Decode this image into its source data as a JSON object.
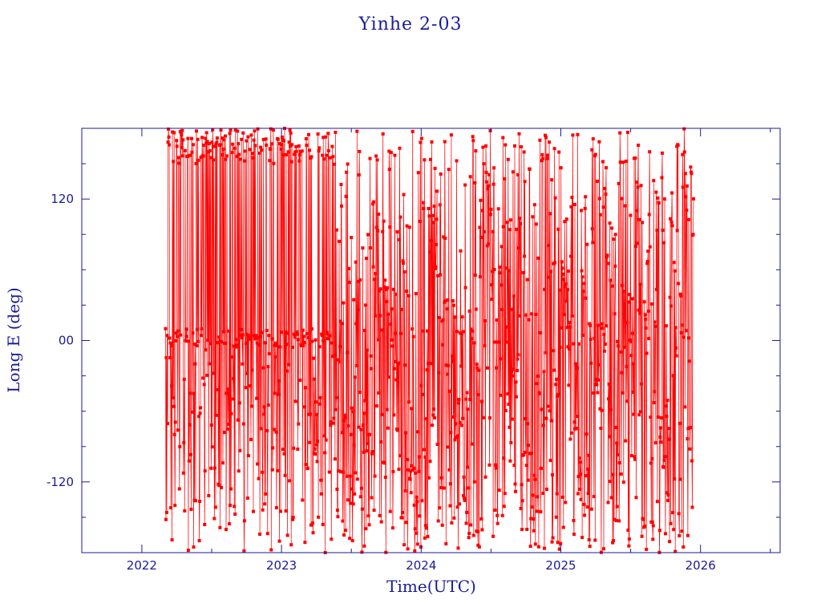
{
  "chart_data": {
    "type": "scatter",
    "title": "Yinhe 2-03",
    "xlabel": "Time(UTC)",
    "ylabel": "Long E (deg)",
    "xlim": [
      2021.57,
      2026.57
    ],
    "ylim": [
      -180,
      180
    ],
    "x_ticks": [
      {
        "value": 2022,
        "label": "2022"
      },
      {
        "value": 2023,
        "label": "2023"
      },
      {
        "value": 2024,
        "label": "2024"
      },
      {
        "value": 2025,
        "label": "2025"
      },
      {
        "value": 2026,
        "label": "2026"
      }
    ],
    "y_ticks": [
      {
        "value": 120,
        "label": "120"
      },
      {
        "value": 0,
        "label": "00"
      },
      {
        "value": -120,
        "label": "-120"
      }
    ],
    "grid": false,
    "series": [
      {
        "color": "#ff0000",
        "marker": "square",
        "connected": true,
        "x_range": [
          2022.17,
          2025.95
        ],
        "y_range": [
          -180,
          180
        ],
        "segments": [
          {
            "x_start": 2022.17,
            "x_end": 2023.37,
            "pattern": "dense vertical oscillation, points cluster near 165 and between -180 and 5"
          },
          {
            "x_start": 2023.37,
            "x_end": 2023.62,
            "pattern": "solid fill across full longitude range"
          },
          {
            "x_start": 2023.62,
            "x_end": 2025.95,
            "pattern": "westward drift bands wrapping from 180 to -180"
          }
        ],
        "drift_bands": [
          {
            "x_at_180": 2024.0,
            "x_at_-180": 2024.42
          },
          {
            "x_at_180": 2024.22,
            "x_at_-180": 2024.62
          },
          {
            "x_at_180": 2024.47,
            "x_at_-180": 2024.88
          },
          {
            "x_at_180": 2024.78,
            "x_at_-180": 2025.2
          },
          {
            "x_at_180": 2025.0,
            "x_at_-180": 2025.42
          },
          {
            "x_at_180": 2025.22,
            "x_at_-180": 2025.62
          },
          {
            "x_at_180": 2025.5,
            "x_at_-180": 2025.88
          }
        ]
      }
    ]
  }
}
